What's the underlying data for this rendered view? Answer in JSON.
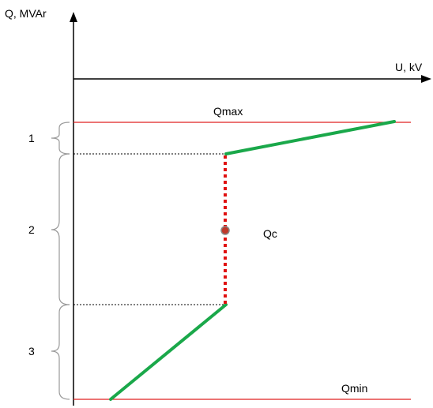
{
  "axes": {
    "y_label": "Q, MVAr",
    "x_label": "U, kV"
  },
  "limits": {
    "qmax_label": "Qmax",
    "qmin_label": "Qmin"
  },
  "operating_point": {
    "label": "Qc"
  },
  "regions": [
    {
      "label": "1"
    },
    {
      "label": "2"
    },
    {
      "label": "3"
    }
  ],
  "colors": {
    "axis": "#000000",
    "limit_line": "#e02020",
    "characteristic": "#1aa84a",
    "deadband": "#e01010",
    "point_fill": "#c0392b",
    "point_stroke": "#888888",
    "brace": "#9a9a9a",
    "guide": "#000000"
  }
}
